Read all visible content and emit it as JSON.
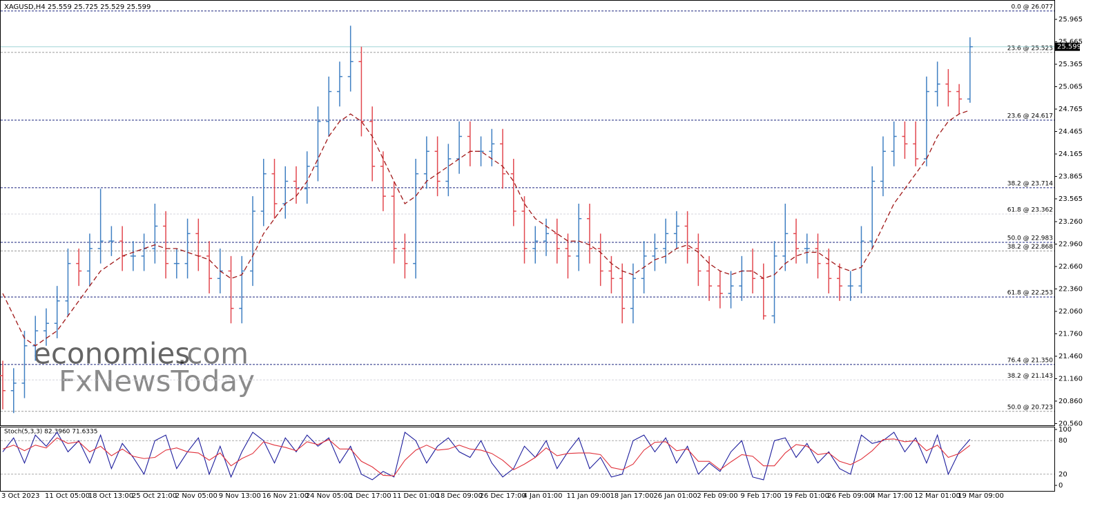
{
  "chart_data": [
    {
      "type": "ohlc",
      "header": "XAGUSD,H4  25.559 25.725 25.529 25.599",
      "watermark": [
        "economies",
        ".com",
        "FxNewsToday"
      ],
      "categories": [
        "3 Oct 2023",
        null,
        null,
        null,
        "11 Oct 05:00",
        null,
        null,
        null,
        "18 Oct 13:00",
        null,
        null,
        null,
        "25 Oct 21:00",
        null,
        null,
        null,
        "2 Nov 05:00",
        null,
        null,
        null,
        "9 Nov 13:00",
        null,
        null,
        null,
        "16 Nov 21:00",
        null,
        null,
        null,
        "24 Nov 05:00",
        null,
        null,
        null,
        "1 Dec 17:00",
        null,
        null,
        null,
        "11 Dec 01:00",
        null,
        null,
        null,
        "18 Dec 09:00",
        null,
        null,
        null,
        "26 Dec 17:00",
        null,
        null,
        null,
        "4 Jan 01:00",
        null,
        null,
        null,
        "11 Jan 09:00",
        null,
        null,
        null,
        "18 Jan 17:00",
        null,
        null,
        null,
        "26 Jan 01:00",
        null,
        null,
        null,
        "2 Feb 09:00",
        null,
        null,
        null,
        "9 Feb 17:00",
        null,
        null,
        null,
        "19 Feb 01:00",
        null,
        null,
        null,
        "26 Feb 09:00",
        null,
        null,
        null,
        "4 Mar 17:00",
        null,
        null,
        null,
        "12 Mar 01:00",
        null,
        null,
        null,
        "19 Mar 09:00",
        null
      ],
      "open": [
        21.2,
        21.0,
        21.1,
        21.6,
        21.8,
        21.9,
        22.2,
        22.7,
        22.6,
        22.9,
        23.0,
        23.0,
        22.8,
        22.8,
        22.9,
        23.2,
        22.7,
        22.7,
        23.1,
        22.8,
        22.5,
        22.6,
        22.1,
        22.6,
        23.4,
        23.9,
        23.5,
        23.8,
        23.7,
        24.0,
        24.6,
        25.0,
        25.2,
        25.4,
        24.6,
        24.0,
        23.6,
        22.9,
        22.7,
        23.9,
        24.2,
        23.8,
        24.1,
        24.4,
        24.2,
        24.2,
        24.3,
        23.9,
        23.4,
        22.9,
        23.0,
        23.1,
        22.9,
        22.8,
        23.3,
        22.9,
        22.6,
        22.5,
        22.1,
        22.5,
        22.8,
        22.9,
        23.1,
        23.2,
        22.9,
        22.6,
        22.4,
        22.3,
        22.4,
        22.6,
        22.5,
        22.0,
        22.8,
        23.1,
        22.9,
        22.9,
        22.7,
        22.5,
        22.4,
        22.4,
        23.0,
        23.8,
        24.2,
        24.4,
        24.3,
        24.1,
        25.0,
        25.1,
        25.0,
        24.9
      ],
      "high": [
        21.4,
        21.3,
        21.8,
        22.0,
        22.1,
        22.4,
        22.9,
        22.9,
        23.1,
        23.7,
        23.2,
        23.2,
        23.0,
        23.1,
        23.5,
        23.4,
        22.9,
        23.3,
        23.3,
        23.0,
        22.9,
        22.8,
        22.8,
        23.6,
        24.1,
        24.1,
        24.0,
        24.0,
        24.2,
        24.8,
        25.2,
        25.4,
        25.88,
        25.6,
        24.8,
        24.2,
        23.8,
        23.1,
        24.1,
        24.4,
        24.4,
        24.3,
        24.6,
        24.6,
        24.4,
        24.5,
        24.5,
        24.1,
        23.6,
        23.2,
        23.3,
        23.3,
        23.1,
        23.5,
        23.5,
        23.1,
        22.8,
        22.7,
        22.7,
        23.0,
        23.1,
        23.3,
        23.4,
        23.4,
        23.1,
        22.8,
        22.6,
        22.6,
        22.8,
        22.9,
        22.7,
        23.0,
        23.5,
        23.3,
        23.1,
        23.1,
        22.9,
        22.7,
        22.6,
        23.2,
        24.0,
        24.4,
        24.6,
        24.6,
        24.6,
        25.2,
        25.4,
        25.3,
        25.1,
        25.725
      ],
      "low": [
        20.75,
        20.7,
        20.9,
        21.4,
        21.6,
        21.7,
        22.0,
        22.4,
        22.4,
        22.7,
        22.8,
        22.6,
        22.6,
        22.6,
        22.7,
        22.5,
        22.5,
        22.5,
        22.6,
        22.3,
        22.3,
        21.9,
        21.9,
        22.4,
        23.2,
        23.3,
        23.3,
        23.5,
        23.5,
        23.8,
        24.4,
        24.8,
        25.0,
        24.4,
        23.8,
        23.4,
        22.7,
        22.5,
        22.5,
        23.7,
        23.6,
        23.6,
        23.9,
        24.0,
        24.0,
        24.0,
        23.7,
        23.2,
        22.7,
        22.7,
        22.8,
        22.7,
        22.5,
        22.6,
        22.7,
        22.4,
        22.3,
        21.9,
        21.9,
        22.3,
        22.6,
        22.7,
        22.9,
        22.7,
        22.4,
        22.2,
        22.1,
        22.1,
        22.2,
        22.3,
        21.95,
        21.9,
        22.6,
        22.7,
        22.7,
        22.5,
        22.3,
        22.2,
        22.2,
        22.3,
        22.9,
        23.6,
        24.0,
        24.1,
        24.0,
        24.0,
        24.8,
        24.8,
        24.7,
        24.85
      ],
      "close": [
        21.0,
        21.1,
        21.6,
        21.8,
        21.9,
        22.2,
        22.7,
        22.6,
        22.9,
        23.0,
        23.0,
        22.8,
        22.8,
        22.9,
        23.2,
        22.7,
        22.7,
        23.1,
        22.8,
        22.5,
        22.6,
        22.1,
        22.6,
        23.4,
        23.9,
        23.5,
        23.8,
        23.7,
        24.0,
        24.6,
        25.0,
        25.2,
        25.4,
        24.6,
        24.0,
        23.6,
        22.9,
        22.7,
        23.9,
        24.2,
        23.8,
        24.1,
        24.4,
        24.2,
        24.2,
        24.3,
        23.9,
        23.4,
        22.9,
        23.0,
        23.1,
        22.9,
        22.8,
        23.3,
        22.9,
        22.6,
        22.5,
        22.1,
        22.5,
        22.8,
        22.9,
        23.1,
        23.2,
        22.9,
        22.6,
        22.4,
        22.3,
        22.4,
        22.6,
        22.5,
        22.0,
        22.8,
        23.1,
        22.9,
        22.9,
        22.7,
        22.5,
        22.4,
        22.4,
        23.0,
        23.8,
        24.2,
        24.4,
        24.3,
        24.1,
        25.0,
        25.1,
        25.0,
        24.9,
        25.599
      ],
      "up_color": "#3f7fc2",
      "down_color": "#e2474e",
      "ma": {
        "color": "#a01818",
        "values": [
          22.3,
          22.0,
          21.7,
          21.6,
          21.7,
          21.8,
          22.0,
          22.2,
          22.4,
          22.6,
          22.7,
          22.8,
          22.85,
          22.9,
          22.95,
          22.9,
          22.9,
          22.85,
          22.8,
          22.75,
          22.6,
          22.5,
          22.55,
          22.8,
          23.1,
          23.3,
          23.5,
          23.6,
          23.8,
          24.1,
          24.4,
          24.6,
          24.7,
          24.6,
          24.4,
          24.1,
          23.8,
          23.5,
          23.6,
          23.8,
          23.9,
          24.0,
          24.1,
          24.2,
          24.2,
          24.1,
          24.0,
          23.8,
          23.5,
          23.3,
          23.2,
          23.1,
          23.0,
          23.0,
          22.95,
          22.85,
          22.7,
          22.6,
          22.55,
          22.65,
          22.75,
          22.8,
          22.9,
          22.95,
          22.85,
          22.7,
          22.6,
          22.55,
          22.6,
          22.6,
          22.5,
          22.55,
          22.7,
          22.8,
          22.85,
          22.85,
          22.75,
          22.65,
          22.6,
          22.65,
          22.9,
          23.2,
          23.5,
          23.7,
          23.9,
          24.1,
          24.4,
          24.6,
          24.7,
          24.75
        ]
      },
      "last": 25.599,
      "last_color": "#9fd3d6",
      "levels": [
        {
          "label": "0.0 @ 26.077",
          "value": 26.077,
          "color": "#1a237e"
        },
        {
          "label": "23.6 @ 25.523",
          "value": 25.523,
          "color": "#9a9a9a"
        },
        {
          "label": "23.6 @ 24.617",
          "value": 24.617,
          "color": "#1a237e"
        },
        {
          "label": "38.2 @ 23.714",
          "value": 23.714,
          "color": "#1a237e"
        },
        {
          "label": "61.8 @ 23.362",
          "value": 23.362,
          "color": "#d4d4de"
        },
        {
          "label": "50.0 @ 22.983",
          "value": 22.983,
          "color": "#1a237e"
        },
        {
          "label": "38.2 @ 22.868",
          "value": 22.868,
          "color": "#9a9a9a"
        },
        {
          "label": "61.8 @ 22.253",
          "value": 22.253,
          "color": "#1a237e"
        },
        {
          "label": "76.4 @ 21.350",
          "value": 21.35,
          "color": "#1a237e"
        },
        {
          "label": "38.2 @ 21.143",
          "value": 21.143,
          "color": "#d4d4de"
        },
        {
          "label": "50.0 @ 20.723",
          "value": 20.723,
          "color": "#9a9a9a"
        }
      ],
      "ylim": [
        20.527,
        26.224
      ],
      "yticks": [
        25.965,
        25.665,
        25.365,
        25.065,
        24.765,
        24.465,
        24.165,
        23.865,
        23.565,
        {
          "value": 23.26,
          "label": "23.260"
        },
        {
          "value": 22.96,
          "label": "22.960"
        },
        {
          "value": 22.66,
          "label": "22.660"
        },
        {
          "value": 22.36,
          "label": "22.360"
        },
        {
          "value": 22.06,
          "label": "22.060"
        },
        {
          "value": 21.76,
          "label": "21.760"
        },
        {
          "value": 21.46,
          "label": "21.460"
        },
        {
          "value": 21.16,
          "label": "21.160"
        },
        {
          "value": 20.86,
          "label": "20.860"
        },
        {
          "value": 20.56,
          "label": "20.560"
        }
      ]
    },
    {
      "type": "line",
      "title": "Stoch(5,3,3) 82.3960 71.6335",
      "series": [
        {
          "color": "#1c1c9c",
          "values": [
            60,
            85,
            40,
            90,
            70,
            95,
            60,
            80,
            40,
            90,
            30,
            75,
            50,
            20,
            80,
            90,
            30,
            60,
            85,
            20,
            70,
            15,
            60,
            95,
            80,
            40,
            85,
            60,
            90,
            70,
            85,
            40,
            70,
            20,
            10,
            25,
            15,
            95,
            80,
            40,
            70,
            85,
            60,
            50,
            80,
            40,
            15,
            30,
            70,
            50,
            80,
            30,
            60,
            85,
            30,
            50,
            15,
            20,
            80,
            90,
            60,
            85,
            40,
            70,
            20,
            40,
            25,
            60,
            80,
            15,
            10,
            80,
            85,
            50,
            75,
            40,
            60,
            30,
            20,
            90,
            75,
            80,
            95,
            60,
            85,
            40,
            90,
            20,
            60,
            82.396
          ]
        },
        {
          "color": "#e0303a",
          "values": [
            65,
            72,
            62,
            72,
            67,
            85,
            75,
            78,
            60,
            70,
            53,
            65,
            52,
            48,
            50,
            63,
            67,
            60,
            58,
            45,
            58,
            35,
            48,
            57,
            78,
            72,
            68,
            62,
            78,
            73,
            82,
            65,
            65,
            43,
            33,
            18,
            17,
            45,
            63,
            72,
            63,
            65,
            72,
            65,
            63,
            57,
            45,
            28,
            38,
            50,
            67,
            53,
            57,
            58,
            58,
            55,
            32,
            28,
            38,
            63,
            77,
            78,
            62,
            65,
            43,
            43,
            28,
            42,
            55,
            52,
            35,
            35,
            58,
            73,
            70,
            55,
            58,
            43,
            37,
            47,
            62,
            82,
            83,
            78,
            80,
            62,
            72,
            50,
            57,
            71.6335
          ]
        }
      ],
      "ylim": [
        -11.1,
        103.7
      ],
      "yticks": [
        100,
        80,
        20,
        0
      ]
    }
  ]
}
